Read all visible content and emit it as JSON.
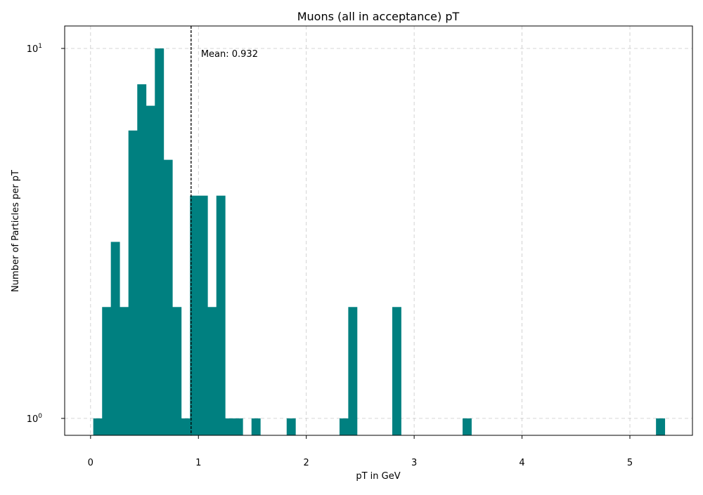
{
  "chart_data": {
    "type": "bar",
    "title": "Muons (all in acceptance) pT",
    "xlabel": "pT in GeV",
    "ylabel": "Number of Particles per pT",
    "xlim": [
      -0.24,
      5.58
    ],
    "ylim": [
      0.9,
      11.5
    ],
    "y_scale": "log",
    "x_ticks": [
      0,
      1,
      2,
      3,
      4,
      5
    ],
    "x_tick_labels": [
      "0",
      "1",
      "2",
      "3",
      "4",
      "5"
    ],
    "y_ticks": [
      {
        "value": 1,
        "base": "10",
        "exponent": "0"
      },
      {
        "value": 10,
        "base": "10",
        "exponent": "1"
      }
    ],
    "grid": true,
    "bar_color": "#008080",
    "bin_width": 0.0815,
    "bins": [
      {
        "x0": 0.025,
        "count": 1
      },
      {
        "x0": 0.107,
        "count": 2
      },
      {
        "x0": 0.188,
        "count": 3
      },
      {
        "x0": 0.27,
        "count": 2
      },
      {
        "x0": 0.351,
        "count": 6
      },
      {
        "x0": 0.433,
        "count": 8
      },
      {
        "x0": 0.514,
        "count": 7
      },
      {
        "x0": 0.596,
        "count": 10
      },
      {
        "x0": 0.677,
        "count": 5
      },
      {
        "x0": 0.759,
        "count": 2
      },
      {
        "x0": 0.84,
        "count": 1
      },
      {
        "x0": 0.922,
        "count": 4
      },
      {
        "x0": 1.003,
        "count": 4
      },
      {
        "x0": 1.085,
        "count": 2
      },
      {
        "x0": 1.166,
        "count": 4
      },
      {
        "x0": 1.248,
        "count": 1
      },
      {
        "x0": 1.329,
        "count": 1
      },
      {
        "x0": 1.492,
        "count": 1
      },
      {
        "x0": 1.818,
        "count": 1
      },
      {
        "x0": 2.308,
        "count": 1
      },
      {
        "x0": 2.389,
        "count": 2
      },
      {
        "x0": 2.797,
        "count": 2
      },
      {
        "x0": 3.449,
        "count": 1
      },
      {
        "x0": 5.242,
        "count": 1
      }
    ],
    "mean": {
      "value": 0.932,
      "label": "Mean: 0.932"
    }
  }
}
